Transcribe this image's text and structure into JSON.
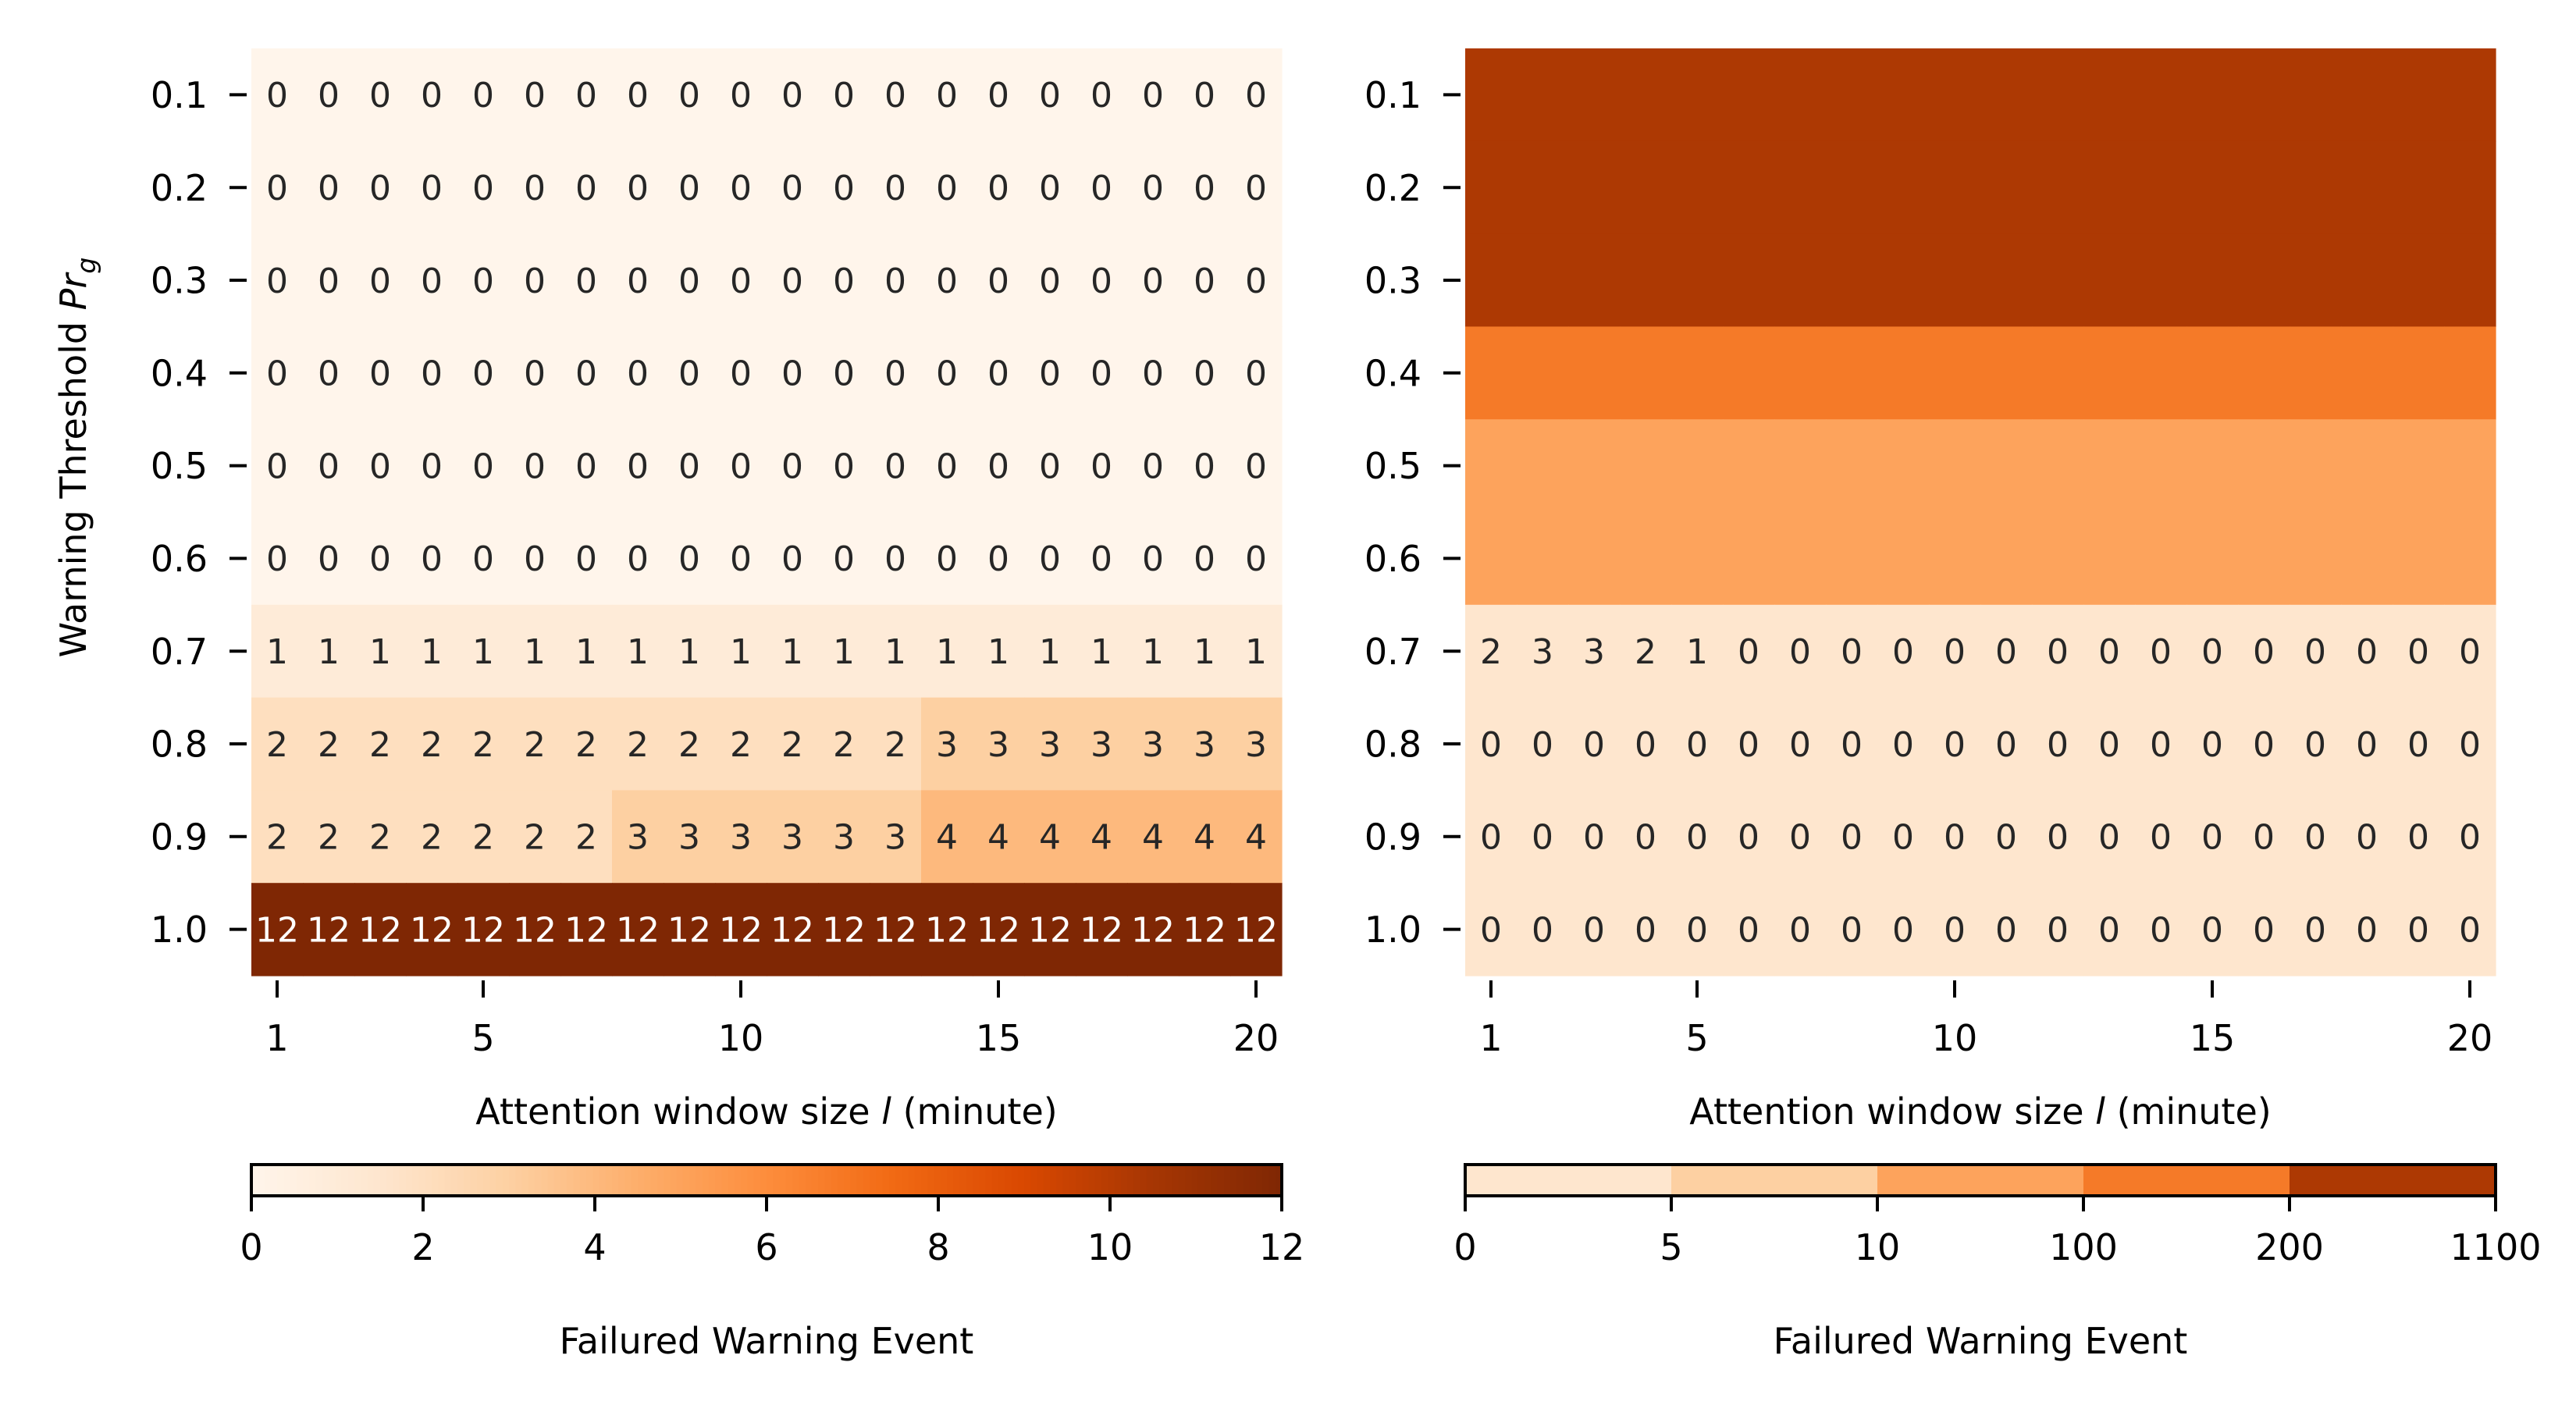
{
  "chart_data": [
    {
      "type": "heatmap",
      "ylabel_prefix": "Warning Threshold ",
      "ylabel_var": "Pr",
      "ylabel_sub": "g",
      "xlabel_prefix": "Attention window size ",
      "xlabel_var": "l",
      "xlabel_suffix": " (minute)",
      "y_categories": [
        "0.1",
        "0.2",
        "0.3",
        "0.4",
        "0.5",
        "0.6",
        "0.7",
        "0.8",
        "0.9",
        "1.0"
      ],
      "x_categories": [
        1,
        2,
        3,
        4,
        5,
        6,
        7,
        8,
        9,
        10,
        11,
        12,
        13,
        14,
        15,
        16,
        17,
        18,
        19,
        20
      ],
      "x_ticks": [
        "1",
        "5",
        "10",
        "15",
        "20"
      ],
      "show_annotations": true,
      "values": [
        [
          0,
          0,
          0,
          0,
          0,
          0,
          0,
          0,
          0,
          0,
          0,
          0,
          0,
          0,
          0,
          0,
          0,
          0,
          0,
          0
        ],
        [
          0,
          0,
          0,
          0,
          0,
          0,
          0,
          0,
          0,
          0,
          0,
          0,
          0,
          0,
          0,
          0,
          0,
          0,
          0,
          0
        ],
        [
          0,
          0,
          0,
          0,
          0,
          0,
          0,
          0,
          0,
          0,
          0,
          0,
          0,
          0,
          0,
          0,
          0,
          0,
          0,
          0
        ],
        [
          0,
          0,
          0,
          0,
          0,
          0,
          0,
          0,
          0,
          0,
          0,
          0,
          0,
          0,
          0,
          0,
          0,
          0,
          0,
          0
        ],
        [
          0,
          0,
          0,
          0,
          0,
          0,
          0,
          0,
          0,
          0,
          0,
          0,
          0,
          0,
          0,
          0,
          0,
          0,
          0,
          0
        ],
        [
          0,
          0,
          0,
          0,
          0,
          0,
          0,
          0,
          0,
          0,
          0,
          0,
          0,
          0,
          0,
          0,
          0,
          0,
          0,
          0
        ],
        [
          1,
          1,
          1,
          1,
          1,
          1,
          1,
          1,
          1,
          1,
          1,
          1,
          1,
          1,
          1,
          1,
          1,
          1,
          1,
          1
        ],
        [
          2,
          2,
          2,
          2,
          2,
          2,
          2,
          2,
          2,
          2,
          2,
          2,
          2,
          3,
          3,
          3,
          3,
          3,
          3,
          3
        ],
        [
          2,
          2,
          2,
          2,
          2,
          2,
          2,
          3,
          3,
          3,
          3,
          3,
          3,
          4,
          4,
          4,
          4,
          4,
          4,
          4
        ],
        [
          12,
          12,
          12,
          12,
          12,
          12,
          12,
          12,
          12,
          12,
          12,
          12,
          12,
          12,
          12,
          12,
          12,
          12,
          12,
          12
        ]
      ],
      "colorbar": {
        "label": "Failured Warning Event",
        "scale": "continuous",
        "range": [
          0,
          12
        ],
        "ticks": [
          "0",
          "2",
          "4",
          "6",
          "8",
          "10",
          "12"
        ],
        "colors": [
          "#fff5eb",
          "#fee6ce",
          "#fdd0a2",
          "#fdae6b",
          "#fd8d3c",
          "#f16913",
          "#d94801",
          "#a63603",
          "#7f2704"
        ]
      }
    },
    {
      "type": "heatmap",
      "xlabel_prefix": "Attention window size ",
      "xlabel_var": "l",
      "xlabel_suffix": " (minute)",
      "y_categories": [
        "0.1",
        "0.2",
        "0.3",
        "0.4",
        "0.5",
        "0.6",
        "0.7",
        "0.8",
        "0.9",
        "1.0"
      ],
      "x_categories": [
        1,
        2,
        3,
        4,
        5,
        6,
        7,
        8,
        9,
        10,
        11,
        12,
        13,
        14,
        15,
        16,
        17,
        18,
        19,
        20
      ],
      "x_ticks": [
        "1",
        "5",
        "10",
        "15",
        "20"
      ],
      "annotated_rows": [
        6,
        7,
        8,
        9
      ],
      "values": [
        [
          210,
          210,
          210,
          210,
          210,
          210,
          210,
          210,
          210,
          210,
          210,
          210,
          210,
          210,
          210,
          210,
          210,
          210,
          210,
          210
        ],
        [
          210,
          210,
          210,
          210,
          210,
          210,
          210,
          210,
          210,
          210,
          210,
          210,
          210,
          210,
          210,
          210,
          210,
          210,
          210,
          210
        ],
        [
          210,
          210,
          210,
          210,
          210,
          210,
          210,
          210,
          210,
          210,
          210,
          210,
          210,
          210,
          210,
          210,
          210,
          210,
          210,
          210
        ],
        [
          150,
          150,
          150,
          150,
          150,
          150,
          150,
          150,
          150,
          150,
          150,
          150,
          150,
          150,
          150,
          150,
          150,
          150,
          150,
          150
        ],
        [
          50,
          50,
          50,
          50,
          50,
          50,
          50,
          50,
          50,
          50,
          50,
          50,
          50,
          50,
          50,
          50,
          50,
          50,
          50,
          50
        ],
        [
          50,
          50,
          50,
          50,
          50,
          50,
          50,
          50,
          50,
          50,
          50,
          50,
          50,
          50,
          50,
          50,
          50,
          50,
          50,
          50
        ],
        [
          2,
          3,
          3,
          2,
          1,
          0,
          0,
          0,
          0,
          0,
          0,
          0,
          0,
          0,
          0,
          0,
          0,
          0,
          0,
          0
        ],
        [
          0,
          0,
          0,
          0,
          0,
          0,
          0,
          0,
          0,
          0,
          0,
          0,
          0,
          0,
          0,
          0,
          0,
          0,
          0,
          0
        ],
        [
          0,
          0,
          0,
          0,
          0,
          0,
          0,
          0,
          0,
          0,
          0,
          0,
          0,
          0,
          0,
          0,
          0,
          0,
          0,
          0
        ],
        [
          0,
          0,
          0,
          0,
          0,
          0,
          0,
          0,
          0,
          0,
          0,
          0,
          0,
          0,
          0,
          0,
          0,
          0,
          0,
          0
        ]
      ],
      "colorbar": {
        "label": "Failured Warning Event",
        "scale": "discrete",
        "boundaries": [
          0,
          5,
          10,
          100,
          200,
          1100
        ],
        "ticks": [
          "0",
          "5",
          "10",
          "100",
          "200",
          "1100"
        ],
        "colors": [
          "#fee6ce",
          "#fdd0a2",
          "#fda35c",
          "#f57a28",
          "#ad3903"
        ]
      }
    }
  ]
}
